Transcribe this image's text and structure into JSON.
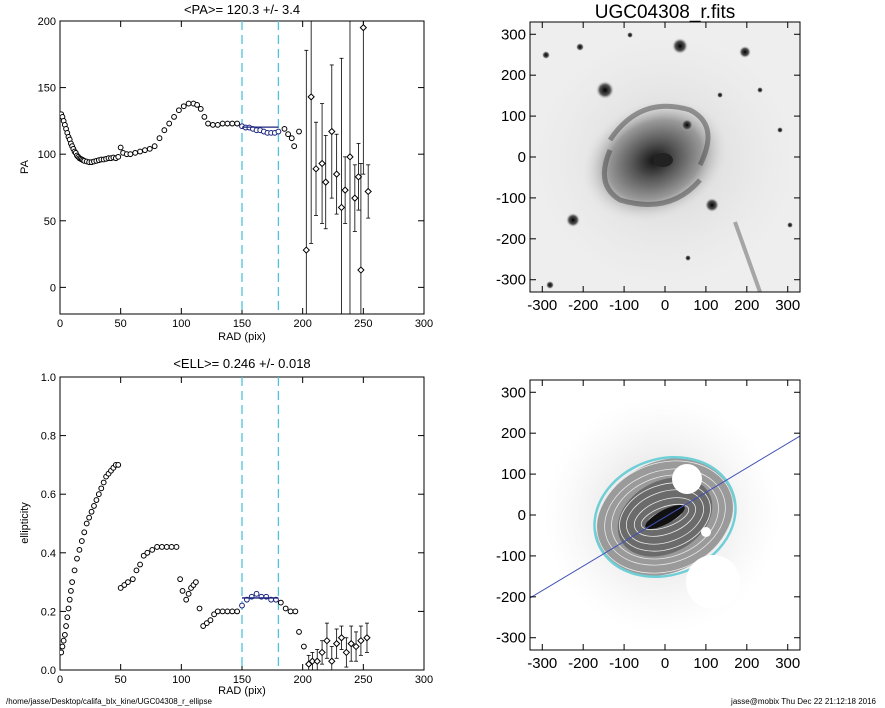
{
  "footer": {
    "path": "/home/jasse/Desktop/califa_blx_kine/UGC04308_r_ellipse",
    "user_stamp": "jasse@mobix  Thu Dec 22 21:12:18 2016"
  },
  "colors": {
    "axis": "#000000",
    "data_points": "#000000",
    "highlight_points": "#1a237e",
    "mean_line": "#1a237e",
    "window_lines": "#4fc3d9",
    "pa_line": "#3f51b5",
    "ellipse_outer": "#6fcfd6"
  },
  "chart_data": [
    {
      "type": "scatter",
      "title": "<PA>= 120.3 +/-   3.4",
      "xlabel": "RAD (pix)",
      "ylabel": "PA",
      "xlim": [
        0,
        300
      ],
      "ylim": [
        -20,
        200
      ],
      "xticks": [
        0,
        50,
        100,
        150,
        200,
        250,
        300
      ],
      "yticks": [
        0,
        50,
        100,
        150,
        200
      ],
      "grid": false,
      "window": [
        150,
        180
      ],
      "mean_value": 120.3,
      "mean_error": 3.4,
      "series": [
        {
          "points": [
            [
              1,
              130
            ],
            [
              2,
              128
            ],
            [
              3,
              125
            ],
            [
              4,
              122
            ],
            [
              5,
              119
            ],
            [
              6,
              116
            ],
            [
              7,
              113
            ],
            [
              8,
              111
            ],
            [
              9,
              108
            ],
            [
              10,
              106
            ],
            [
              11,
              104
            ],
            [
              12,
              102
            ],
            [
              13,
              101
            ],
            [
              14,
              99
            ],
            [
              15,
              98
            ],
            [
              16,
              97
            ],
            [
              17,
              96.5
            ],
            [
              18,
              96
            ],
            [
              19,
              95.5
            ],
            [
              20,
              95
            ],
            [
              22,
              94.5
            ],
            [
              24,
              94
            ],
            [
              26,
              94
            ],
            [
              28,
              94.5
            ],
            [
              30,
              95
            ],
            [
              32,
              95.5
            ],
            [
              34,
              96
            ],
            [
              36,
              96
            ],
            [
              38,
              96.5
            ],
            [
              40,
              97
            ],
            [
              42,
              97
            ],
            [
              44,
              97.5
            ],
            [
              46,
              97
            ],
            [
              48,
              98
            ],
            [
              50,
              105
            ],
            [
              52,
              101
            ],
            [
              55,
              100
            ],
            [
              58,
              100
            ],
            [
              62,
              101
            ],
            [
              66,
              102
            ],
            [
              70,
              103
            ],
            [
              74,
              104
            ],
            [
              78,
              106
            ],
            [
              82,
              112
            ],
            [
              86,
              118
            ],
            [
              90,
              123
            ],
            [
              94,
              128
            ],
            [
              98,
              133
            ],
            [
              102,
              136
            ],
            [
              106,
              138
            ],
            [
              110,
              138
            ],
            [
              113,
              137
            ],
            [
              116,
              134
            ],
            [
              119,
              128
            ],
            [
              122,
              123
            ],
            [
              126,
              122
            ],
            [
              130,
              122
            ],
            [
              134,
              123
            ],
            [
              138,
              123
            ],
            [
              142,
              123
            ],
            [
              146,
              123
            ],
            [
              150,
              121
            ],
            [
              153,
              120
            ],
            [
              156,
              120
            ],
            [
              159,
              119
            ],
            [
              162,
              118
            ],
            [
              165,
              118
            ],
            [
              168,
              117
            ],
            [
              171,
              116
            ],
            [
              174,
              116
            ],
            [
              177,
              116
            ],
            [
              180,
              117
            ],
            [
              185,
              119
            ],
            [
              188,
              115
            ],
            [
              191,
              112
            ],
            [
              193,
              106
            ],
            [
              197,
              117
            ]
          ]
        },
        {
          "errorbars": [
            [
              203,
              28,
              150
            ],
            [
              207,
              143,
              110
            ],
            [
              211,
              89,
              35
            ],
            [
              216,
              93,
              45
            ],
            [
              219,
              79,
              35
            ],
            [
              224,
              117,
              50
            ],
            [
              228,
              85,
              30
            ],
            [
              232,
              60,
              112
            ],
            [
              235,
              73,
              25
            ],
            [
              239,
              98,
              130
            ],
            [
              243,
              67,
              25
            ],
            [
              246,
              83,
              25
            ],
            [
              248,
              13,
              80
            ],
            [
              250,
              195,
              110
            ],
            [
              254,
              72,
              20
            ]
          ]
        }
      ]
    },
    {
      "type": "scatter",
      "title": "<ELL>= 0.246 +/-  0.018",
      "xlabel": "RAD (pix)",
      "ylabel": "ellipticity",
      "xlim": [
        0,
        300
      ],
      "ylim": [
        0,
        1.0
      ],
      "xticks": [
        0,
        50,
        100,
        150,
        200,
        250,
        300
      ],
      "yticks": [
        0.0,
        0.2,
        0.4,
        0.6,
        0.8,
        1.0
      ],
      "grid": false,
      "window": [
        150,
        180
      ],
      "mean_value": 0.246,
      "mean_error": 0.018,
      "series": [
        {
          "points": [
            [
              1,
              0.06
            ],
            [
              2,
              0.08
            ],
            [
              3,
              0.1
            ],
            [
              4,
              0.12
            ],
            [
              5,
              0.15
            ],
            [
              6,
              0.18
            ],
            [
              7,
              0.21
            ],
            [
              8,
              0.24
            ],
            [
              9,
              0.27
            ],
            [
              10,
              0.3
            ],
            [
              12,
              0.34
            ],
            [
              14,
              0.38
            ],
            [
              16,
              0.41
            ],
            [
              18,
              0.44
            ],
            [
              20,
              0.47
            ],
            [
              22,
              0.5
            ],
            [
              24,
              0.52
            ],
            [
              26,
              0.54
            ],
            [
              28,
              0.56
            ],
            [
              30,
              0.58
            ],
            [
              32,
              0.6
            ],
            [
              34,
              0.62
            ],
            [
              36,
              0.64
            ],
            [
              38,
              0.66
            ],
            [
              40,
              0.67
            ],
            [
              42,
              0.68
            ],
            [
              44,
              0.69
            ],
            [
              46,
              0.7
            ],
            [
              48,
              0.7
            ],
            [
              50,
              0.28
            ],
            [
              53,
              0.29
            ],
            [
              56,
              0.3
            ],
            [
              60,
              0.31
            ],
            [
              63,
              0.34
            ],
            [
              66,
              0.36
            ],
            [
              69,
              0.39
            ],
            [
              72,
              0.4
            ],
            [
              76,
              0.41
            ],
            [
              80,
              0.42
            ],
            [
              84,
              0.42
            ],
            [
              88,
              0.42
            ],
            [
              92,
              0.42
            ],
            [
              96,
              0.42
            ],
            [
              99,
              0.31
            ],
            [
              101,
              0.27
            ],
            [
              104,
              0.24
            ],
            [
              106,
              0.26
            ],
            [
              108,
              0.28
            ],
            [
              110,
              0.29
            ],
            [
              112,
              0.3
            ],
            [
              115,
              0.21
            ],
            [
              118,
              0.15
            ],
            [
              121,
              0.16
            ],
            [
              124,
              0.17
            ],
            [
              127,
              0.19
            ],
            [
              130,
              0.2
            ],
            [
              134,
              0.2
            ],
            [
              138,
              0.2
            ],
            [
              142,
              0.2
            ],
            [
              146,
              0.2
            ],
            [
              150,
              0.22
            ],
            [
              154,
              0.24
            ],
            [
              158,
              0.25
            ],
            [
              162,
              0.26
            ],
            [
              166,
              0.25
            ],
            [
              170,
              0.25
            ],
            [
              174,
              0.24
            ],
            [
              178,
              0.24
            ],
            [
              182,
              0.23
            ],
            [
              186,
              0.21
            ],
            [
              190,
              0.2
            ],
            [
              194,
              0.2
            ],
            [
              197,
              0.13
            ],
            [
              201,
              0.08
            ]
          ]
        },
        {
          "errorbars": [
            [
              205,
              0.02,
              0.03
            ],
            [
              208,
              0.03,
              0.03
            ],
            [
              212,
              0.03,
              0.04
            ],
            [
              216,
              0.06,
              0.04
            ],
            [
              220,
              0.1,
              0.06
            ],
            [
              224,
              0.03,
              0.05
            ],
            [
              228,
              0.09,
              0.05
            ],
            [
              232,
              0.11,
              0.04
            ],
            [
              236,
              0.06,
              0.05
            ],
            [
              240,
              0.09,
              0.06
            ],
            [
              244,
              0.08,
              0.05
            ],
            [
              248,
              0.1,
              0.05
            ],
            [
              253,
              0.11,
              0.05
            ]
          ]
        }
      ]
    },
    {
      "type": "heatmap",
      "title": "UGC04308_r.fits",
      "xlim": [
        -330,
        330
      ],
      "ylim": [
        -330,
        330
      ],
      "xticks": [
        -300,
        -200,
        -100,
        0,
        100,
        200,
        300
      ],
      "yticks": [
        -300,
        -200,
        -100,
        0,
        100,
        200,
        300
      ],
      "colormap": "grayscale (inverted)"
    },
    {
      "type": "heatmap",
      "title": "",
      "xlim": [
        -330,
        330
      ],
      "ylim": [
        -330,
        330
      ],
      "xticks": [
        -300,
        -200,
        -100,
        0,
        100,
        200,
        300
      ],
      "yticks": [
        -300,
        -200,
        -100,
        0,
        100,
        200,
        300
      ],
      "overlay": "fitted isophote ellipses and position-angle line"
    }
  ]
}
